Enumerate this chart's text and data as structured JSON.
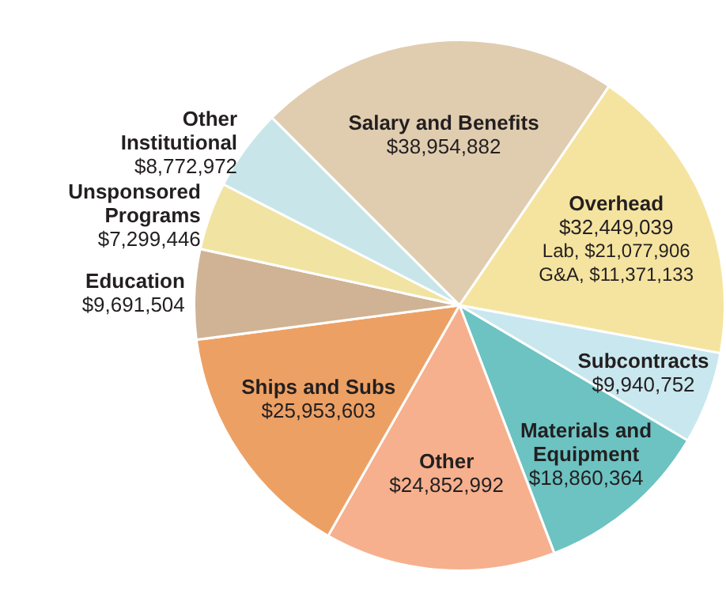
{
  "chart_data": {
    "type": "pie",
    "categories": [
      "Salary and Benefits",
      "Overhead",
      "Subcontracts",
      "Materials and Equipment",
      "Other",
      "Ships and Subs",
      "Education",
      "Unsponsored Programs",
      "Other Institutional"
    ],
    "values": [
      38954882,
      32449039,
      9940752,
      18860364,
      24852992,
      25953603,
      9691504,
      7299446,
      8772972
    ],
    "value_labels": [
      "$38,954,882",
      "$32,449,039",
      "$9,940,752",
      "$18,860,364",
      "$24,852,992",
      "$25,953,603",
      "$9,691,504",
      "$7,299,446",
      "$8,772,972"
    ],
    "colors": [
      "#e0cdb0",
      "#f5e4a0",
      "#c9e7ee",
      "#6cc3c2",
      "#f6b08e",
      "#eda064",
      "#cfb394",
      "#f1e3a2",
      "#c8e6ea"
    ],
    "annotations": [
      {
        "text": "Lab, $21,077,906",
        "x": "Overhead"
      },
      {
        "text": "G&A, $11,371,133",
        "x": "Overhead"
      }
    ],
    "legend": false
  }
}
